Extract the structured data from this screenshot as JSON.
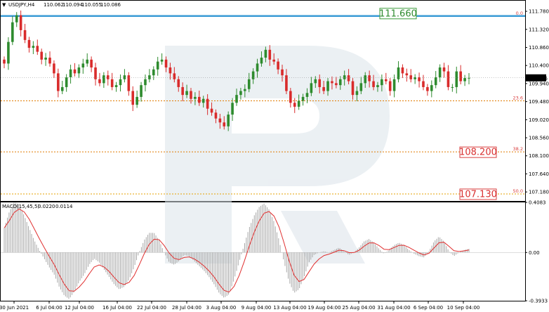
{
  "chart_data": [
    {
      "type": "candlestick",
      "header": {
        "symbol": "USDJPY,H4",
        "open": "110.062",
        "high": "110.094",
        "low": "110.055",
        "close": "110.086"
      },
      "ylim": [
        106.95,
        112.05
      ],
      "y_ticks": [
        "111.780",
        "111.320",
        "110.860",
        "110.400",
        "109.940",
        "109.480",
        "109.020",
        "108.560",
        "108.100",
        "107.640",
        "107.180"
      ],
      "x_ticks": [
        "30 Jun 2021",
        "6 Jul 04:00",
        "12 Jul 04:00",
        "16 Jul 04:00",
        "22 Jul 04:00",
        "28 Jul 04:00",
        "3 Aug 04:00",
        "9 Aug 04:00",
        "13 Aug 04:00",
        "19 Aug 04:00",
        "25 Aug 04:00",
        "31 Aug 04:00",
        "6 Sep 04:00",
        "10 Sep 04:00"
      ],
      "current_price": "110.086",
      "fib_levels": [
        {
          "ratio": "0.0",
          "price": 111.66,
          "label": "111.660"
        },
        {
          "ratio": "23.6",
          "price": 109.5,
          "label": ""
        },
        {
          "ratio": "38.2",
          "price": 108.2,
          "label": "108.200"
        },
        {
          "ratio": "50.0",
          "price": 107.13,
          "label": "107.130"
        }
      ],
      "closes": [
        110.45,
        111.0,
        111.5,
        111.68,
        111.3,
        111.05,
        110.85,
        110.9,
        110.75,
        110.55,
        110.6,
        110.45,
        110.2,
        109.75,
        109.85,
        110.1,
        110.3,
        110.2,
        110.35,
        110.45,
        110.55,
        110.35,
        110.05,
        109.95,
        110.15,
        110.05,
        109.85,
        109.9,
        110.05,
        110.15,
        109.75,
        109.4,
        109.6,
        109.9,
        110.05,
        110.15,
        110.3,
        110.5,
        110.55,
        110.35,
        110.2,
        110.05,
        109.85,
        109.65,
        109.75,
        109.55,
        109.6,
        109.45,
        109.55,
        109.3,
        109.2,
        109.05,
        108.95,
        108.85,
        109.15,
        109.45,
        109.65,
        109.75,
        109.8,
        110.05,
        110.25,
        110.45,
        110.6,
        110.8,
        110.55,
        110.5,
        110.3,
        110.15,
        109.75,
        109.45,
        109.35,
        109.5,
        109.6,
        109.7,
        109.95,
        110.05,
        109.85,
        109.75,
        110.0,
        109.95,
        109.9,
        110.05,
        110.15,
        110.0,
        109.65,
        109.75,
        109.95,
        110.15,
        110.0,
        109.85,
        109.9,
        110.05,
        110.0,
        109.75,
        110.05,
        110.35,
        110.2,
        110.15,
        110.05,
        110.1,
        110.0,
        109.85,
        109.75,
        109.9,
        110.1,
        110.35,
        110.25,
        109.85,
        109.85,
        110.25,
        110.0,
        110.08,
        110.086
      ],
      "indicator": {
        "name": "MACD(15,45,5)",
        "main": "0.0220",
        "signal": "0.0114",
        "ylim": [
          -0.3933,
          0.4083
        ],
        "y_ticks": [
          "0.4083",
          "0.00",
          "-0.3933"
        ],
        "histogram": [
          0.2,
          0.33,
          0.41,
          0.39,
          0.3,
          0.2,
          0.1,
          0.02,
          -0.05,
          -0.12,
          -0.18,
          -0.28,
          -0.35,
          -0.38,
          -0.32,
          -0.24,
          -0.18,
          -0.1,
          -0.05,
          -0.08,
          -0.14,
          -0.2,
          -0.26,
          -0.3,
          -0.28,
          -0.22,
          -0.12,
          0.0,
          0.1,
          0.16,
          0.16,
          0.1,
          0.0,
          -0.08,
          -0.1,
          -0.07,
          -0.02,
          -0.03,
          -0.07,
          -0.11,
          -0.15,
          -0.2,
          -0.26,
          -0.33,
          -0.37,
          -0.34,
          -0.22,
          -0.08,
          0.06,
          0.2,
          0.3,
          0.37,
          0.4,
          0.35,
          0.25,
          0.1,
          -0.08,
          -0.24,
          -0.33,
          -0.3,
          -0.2,
          -0.08,
          -0.02,
          0.0,
          0.01,
          0.0,
          0.02,
          0.04,
          0.01,
          -0.02,
          0.0,
          0.04,
          0.09,
          0.11,
          0.08,
          0.03,
          -0.01,
          0.02,
          0.06,
          0.08,
          0.06,
          0.02,
          -0.01,
          -0.03,
          -0.04,
          0.01,
          0.09,
          0.13,
          0.09,
          0.01,
          -0.03,
          0.0,
          0.02,
          0.03
        ]
      }
    }
  ]
}
